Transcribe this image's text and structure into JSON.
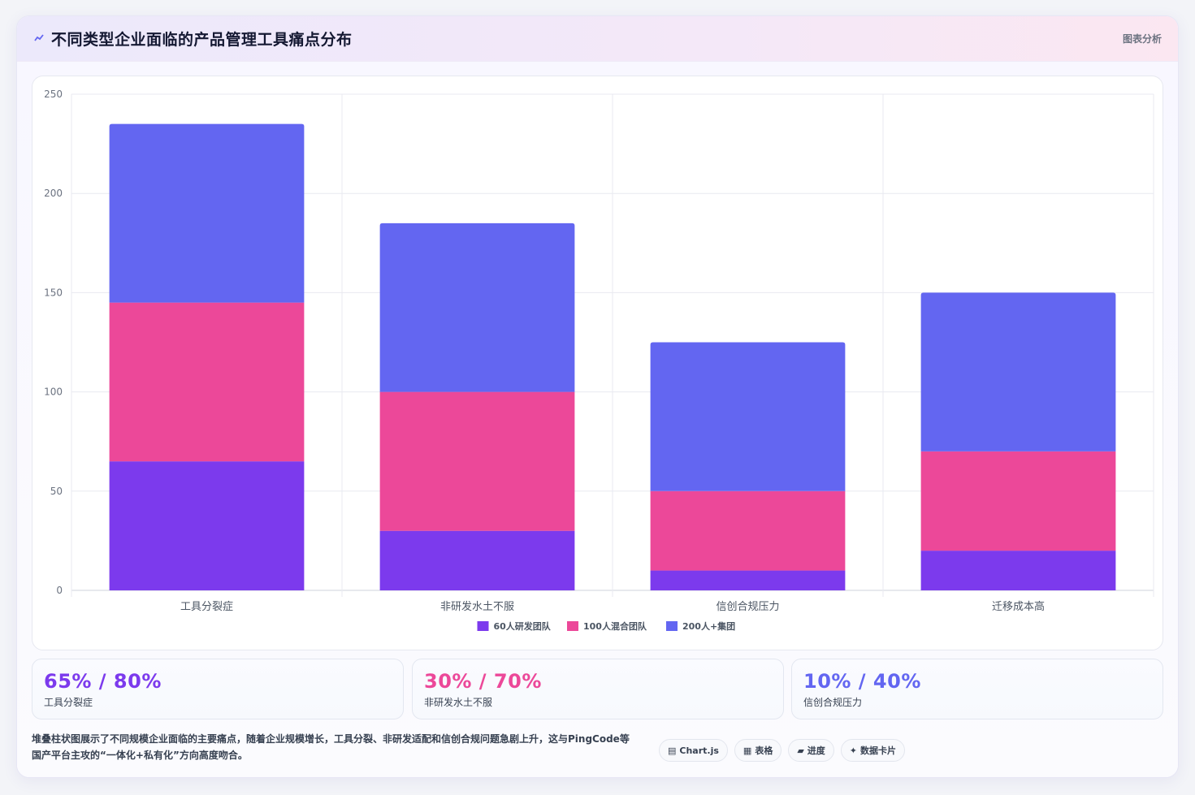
{
  "header": {
    "title": "不同类型企业面临的产品管理工具痛点分布",
    "title_icon": "chart-line-icon",
    "tag": "图表分析"
  },
  "chart_data": {
    "type": "bar",
    "stacked": true,
    "categories": [
      "工具分裂症",
      "非研发水土不服",
      "信创合规压力",
      "迁移成本高"
    ],
    "series": [
      {
        "name": "60人研发团队",
        "color": "#7c3aed",
        "values": [
          65,
          30,
          10,
          20
        ]
      },
      {
        "name": "100人混合团队",
        "color": "#ec4899",
        "values": [
          80,
          70,
          40,
          50
        ]
      },
      {
        "name": "200人+集团",
        "color": "#6366f1",
        "values": [
          90,
          85,
          75,
          80
        ]
      }
    ],
    "ylim": [
      0,
      250
    ],
    "yticks": [
      0,
      50,
      100,
      150,
      200,
      250
    ],
    "grid": true,
    "legend": "bottom"
  },
  "stats": [
    {
      "value": "65% / 80%",
      "label": "工具分裂症",
      "color": "#7c3aed"
    },
    {
      "value": "30% / 70%",
      "label": "非研发水土不服",
      "color": "#ec4899"
    },
    {
      "value": "10% / 40%",
      "label": "信创合规压力",
      "color": "#6366f1"
    }
  ],
  "footer": {
    "text": "堆叠柱状图展示了不同规模企业面临的主要痛点，随着企业规模增长，工具分裂、非研发适配和信创合规问题急剧上升，这与PingCode等国产平台主攻的“一体化+私有化”方向高度吻合。",
    "chips": [
      {
        "icon": "chart-icon",
        "glyph": "▤",
        "label": "Chart.js"
      },
      {
        "icon": "table-icon",
        "glyph": "▦",
        "label": "表格"
      },
      {
        "icon": "progress-icon",
        "glyph": "▰",
        "label": "进度"
      },
      {
        "icon": "card-icon",
        "glyph": "✦",
        "label": "数据卡片"
      }
    ]
  }
}
